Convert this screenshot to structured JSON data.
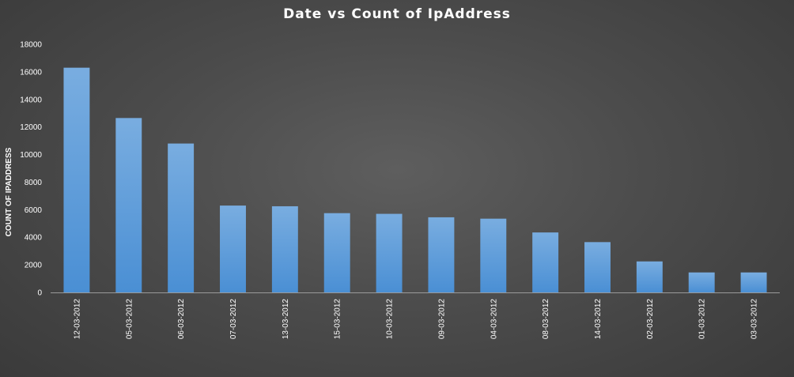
{
  "chart_data": {
    "type": "bar",
    "title": "Date vs Count of IpAddress",
    "xlabel": "",
    "ylabel": "COUNT OF IPADDRESS",
    "ylim": [
      0,
      18000
    ],
    "yticks": [
      0,
      2000,
      4000,
      6000,
      8000,
      10000,
      12000,
      14000,
      16000,
      18000
    ],
    "grid": false,
    "legend": "none",
    "bar_color": "#5b9bd5",
    "categories": [
      "12-03-2012",
      "05-03-2012",
      "06-03-2012",
      "07-03-2012",
      "13-03-2012",
      "15-03-2012",
      "10-03-2012",
      "09-03-2012",
      "04-03-2012",
      "08-03-2012",
      "14-03-2012",
      "02-03-2012",
      "01-03-2012",
      "03-03-2012"
    ],
    "values": [
      16300,
      12650,
      10800,
      6300,
      6250,
      5750,
      5700,
      5450,
      5350,
      4350,
      3650,
      2250,
      1450,
      1450
    ]
  }
}
